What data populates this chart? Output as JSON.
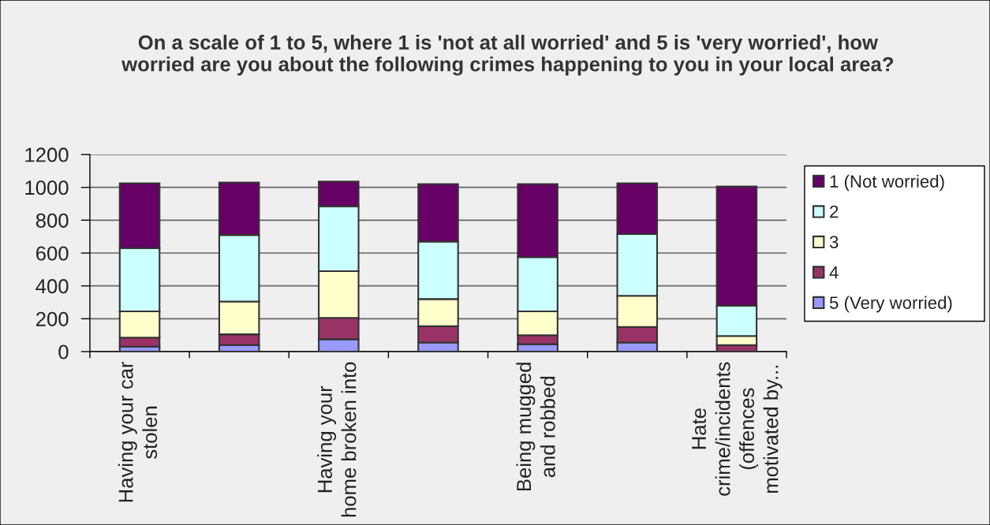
{
  "chart_data": {
    "type": "bar",
    "stacked": true,
    "title": "On a scale of 1 to 5, where 1 is 'not at all worried' and 5 is 'very worried', how\nworried are you about the following crimes happening to you in your local area?",
    "categories": [
      "Having your car\nstolen",
      null,
      "Having your\nhome broken into",
      null,
      "Being mugged\nand robbed",
      null,
      "Hate\ncrime/incidents\n(offences\nmotivated by..."
    ],
    "series": [
      {
        "name": "5 (Very worried)",
        "color": "#9999ff",
        "values": [
          30,
          40,
          75,
          55,
          45,
          55,
          null
        ]
      },
      {
        "name": "4",
        "color": "#993366",
        "values": [
          55,
          65,
          130,
          100,
          55,
          95,
          40
        ]
      },
      {
        "name": "3",
        "color": "#ffffcc",
        "values": [
          160,
          200,
          285,
          165,
          145,
          190,
          55
        ]
      },
      {
        "name": "2",
        "color": "#ccffff",
        "values": [
          385,
          405,
          395,
          350,
          330,
          375,
          185
        ]
      },
      {
        "name": "1 (Not worried)",
        "color": "#660066",
        "values": [
          395,
          320,
          150,
          350,
          445,
          310,
          725
        ]
      }
    ],
    "ylim": [
      0,
      1200
    ],
    "yticks": [
      0,
      200,
      400,
      600,
      800,
      1000,
      1200
    ],
    "grid": "y",
    "legend": "right"
  }
}
